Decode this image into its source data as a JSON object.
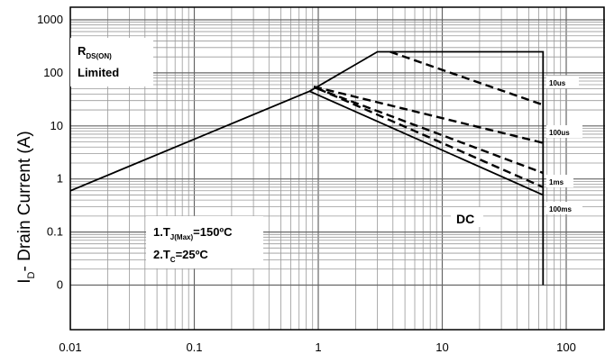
{
  "chart_data": {
    "type": "line",
    "title": "",
    "xlabel": "",
    "ylabel_parts": {
      "main": "I",
      "sub": "D",
      "rest": "- Drain Current (A)"
    },
    "x_scale": "log",
    "y_scale": "log",
    "xlim": [
      0.01,
      200
    ],
    "ylim": [
      0.01,
      1000
    ],
    "x_ticks": [
      {
        "value": 0.01,
        "label": "0.01"
      },
      {
        "value": 0.1,
        "label": "0.1"
      },
      {
        "value": 1,
        "label": "1"
      },
      {
        "value": 10,
        "label": "10"
      },
      {
        "value": 100,
        "label": "100"
      }
    ],
    "y_ticks": [
      {
        "value": 1000,
        "label": "1000"
      },
      {
        "value": 100,
        "label": "100"
      },
      {
        "value": 10,
        "label": "10"
      },
      {
        "value": 1,
        "label": "1"
      },
      {
        "value": 0.1,
        "label": "0.1"
      },
      {
        "value": 0.01,
        "label": "0"
      }
    ],
    "grid": true,
    "series": [
      {
        "name": "DC",
        "style": "solid",
        "x": [
          0.01,
          0.85,
          3.0,
          65,
          65,
          65
        ],
        "y": [
          0.6,
          45,
          250,
          250,
          0.5,
          0.01
        ]
      },
      {
        "name": "DC boundary lower",
        "style": "solid",
        "x": [
          0.85,
          65
        ],
        "y": [
          45,
          0.5
        ]
      },
      {
        "name": "10us",
        "style": "dashed",
        "x": [
          3.8,
          65
        ],
        "y": [
          250,
          25
        ]
      },
      {
        "name": "100us",
        "style": "dashed",
        "x": [
          0.92,
          65
        ],
        "y": [
          55,
          4.8
        ]
      },
      {
        "name": "1ms",
        "style": "dashed",
        "x": [
          0.95,
          65
        ],
        "y": [
          52,
          1.3
        ]
      },
      {
        "name": "100ms",
        "style": "dashed",
        "x": [
          1.0,
          65
        ],
        "y": [
          50,
          0.7
        ]
      }
    ],
    "annotations": {
      "rds_line1_main": "R",
      "rds_line1_sub": "DS(ON)",
      "rds_line2": "Limited",
      "tj_prefix": "1.T",
      "tj_sub": "J(Max)",
      "tj_rest": "=150ºC",
      "tc_prefix": "2.T",
      "tc_sub": "C",
      "tc_rest": "=25ºC",
      "dc_label": "DC",
      "pulse_10us": "10us",
      "pulse_100us": "100us",
      "pulse_1ms": "1ms",
      "pulse_100ms": "100ms"
    }
  }
}
